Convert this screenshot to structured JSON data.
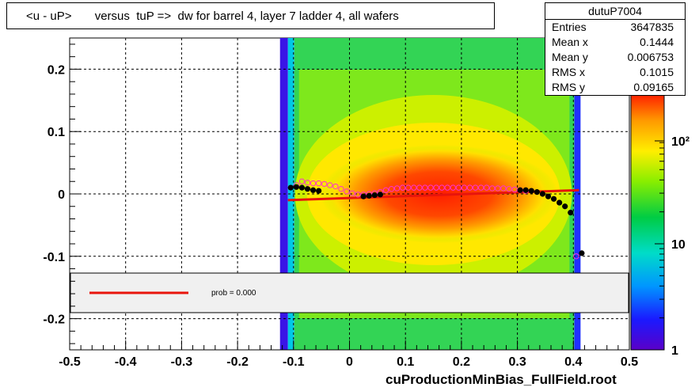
{
  "title": "<u - uP>       versus  tuP =>  dw for barrel 4, layer 7 ladder 4, all wafers",
  "stats": {
    "name": "dutuP7004",
    "rows": [
      {
        "key": "Entries",
        "value": "3647835"
      },
      {
        "key": "Mean x",
        "value": "0.1444"
      },
      {
        "key": "Mean y",
        "value": "0.006753"
      },
      {
        "key": "RMS x",
        "value": "0.1015"
      },
      {
        "key": "RMS y",
        "value": "0.09165"
      }
    ]
  },
  "footer": "cuProductionMinBias_FullField.root",
  "legend": {
    "text": "prob = 0.000"
  },
  "colors": {
    "fit_line": "#e8140c",
    "profile_black": "#000000",
    "profile_magenta": "#ff33cc"
  },
  "chart_data": {
    "type": "heatmap",
    "xlim": [
      -0.5,
      0.5
    ],
    "ylim": [
      -0.25,
      0.25
    ],
    "x_ticks": [
      -0.5,
      -0.4,
      -0.3,
      -0.2,
      -0.1,
      0,
      0.1,
      0.2,
      0.3,
      0.4,
      0.5
    ],
    "x_tick_labels": [
      "-0.5",
      "-0.4",
      "-0.3",
      "-0.2",
      "-0.1",
      "0",
      "0.1",
      "0.2",
      "0.3",
      "0.4",
      "0.5"
    ],
    "y_ticks": [
      -0.2,
      -0.1,
      0,
      0.1,
      0.2
    ],
    "y_tick_labels": [
      "-0.2",
      "-0.1",
      "0",
      "0.1",
      "0.2"
    ],
    "grid": true,
    "occupied_x_range": [
      -0.11,
      0.41
    ],
    "color_scale": {
      "type": "log",
      "min": 1,
      "ticks": [
        "1",
        "10",
        "10²"
      ]
    },
    "profile_black": [
      {
        "x": -0.105,
        "y": 0.01
      },
      {
        "x": -0.095,
        "y": 0.011
      },
      {
        "x": -0.085,
        "y": 0.01
      },
      {
        "x": -0.075,
        "y": 0.008
      },
      {
        "x": -0.065,
        "y": 0.006
      },
      {
        "x": -0.055,
        "y": 0.005
      },
      {
        "x": 0.025,
        "y": -0.004
      },
      {
        "x": 0.035,
        "y": -0.003
      },
      {
        "x": 0.045,
        "y": -0.002
      },
      {
        "x": 0.055,
        "y": -0.001
      },
      {
        "x": 0.305,
        "y": 0.006
      },
      {
        "x": 0.315,
        "y": 0.006
      },
      {
        "x": 0.325,
        "y": 0.005
      },
      {
        "x": 0.335,
        "y": 0.003
      },
      {
        "x": 0.345,
        "y": 0.0
      },
      {
        "x": 0.355,
        "y": -0.004
      },
      {
        "x": 0.365,
        "y": -0.008
      },
      {
        "x": 0.375,
        "y": -0.014
      },
      {
        "x": 0.385,
        "y": -0.02
      },
      {
        "x": 0.395,
        "y": -0.03
      },
      {
        "x": 0.415,
        "y": -0.095
      }
    ],
    "profile_magenta": [
      {
        "x": -0.095,
        "y": 0.014
      },
      {
        "x": -0.085,
        "y": 0.02
      },
      {
        "x": -0.075,
        "y": 0.018
      },
      {
        "x": -0.065,
        "y": 0.017
      },
      {
        "x": -0.055,
        "y": 0.017
      },
      {
        "x": -0.045,
        "y": 0.016
      },
      {
        "x": -0.035,
        "y": 0.014
      },
      {
        "x": -0.025,
        "y": 0.012
      },
      {
        "x": -0.015,
        "y": 0.008
      },
      {
        "x": -0.005,
        "y": 0.004
      },
      {
        "x": 0.005,
        "y": 0.001
      },
      {
        "x": 0.015,
        "y": -0.001
      },
      {
        "x": 0.025,
        "y": -0.001
      },
      {
        "x": 0.035,
        "y": 0.0
      },
      {
        "x": 0.045,
        "y": 0.001
      },
      {
        "x": 0.055,
        "y": 0.003
      },
      {
        "x": 0.065,
        "y": 0.006
      },
      {
        "x": 0.075,
        "y": 0.008
      },
      {
        "x": 0.085,
        "y": 0.009
      },
      {
        "x": 0.095,
        "y": 0.01
      },
      {
        "x": 0.105,
        "y": 0.01
      },
      {
        "x": 0.115,
        "y": 0.01
      },
      {
        "x": 0.125,
        "y": 0.01
      },
      {
        "x": 0.135,
        "y": 0.01
      },
      {
        "x": 0.145,
        "y": 0.01
      },
      {
        "x": 0.155,
        "y": 0.01
      },
      {
        "x": 0.165,
        "y": 0.01
      },
      {
        "x": 0.175,
        "y": 0.01
      },
      {
        "x": 0.185,
        "y": 0.01
      },
      {
        "x": 0.195,
        "y": 0.01
      },
      {
        "x": 0.205,
        "y": 0.01
      },
      {
        "x": 0.215,
        "y": 0.01
      },
      {
        "x": 0.225,
        "y": 0.01
      },
      {
        "x": 0.235,
        "y": 0.01
      },
      {
        "x": 0.245,
        "y": 0.01
      },
      {
        "x": 0.255,
        "y": 0.009
      },
      {
        "x": 0.265,
        "y": 0.009
      },
      {
        "x": 0.275,
        "y": 0.009
      },
      {
        "x": 0.285,
        "y": 0.008
      },
      {
        "x": 0.295,
        "y": 0.007
      },
      {
        "x": 0.305,
        "y": 0.006
      },
      {
        "x": 0.315,
        "y": 0.005
      },
      {
        "x": 0.405,
        "y": -0.1
      }
    ],
    "fit_line": {
      "x": [
        -0.11,
        0.41
      ],
      "y": [
        -0.01,
        0.006
      ]
    }
  }
}
